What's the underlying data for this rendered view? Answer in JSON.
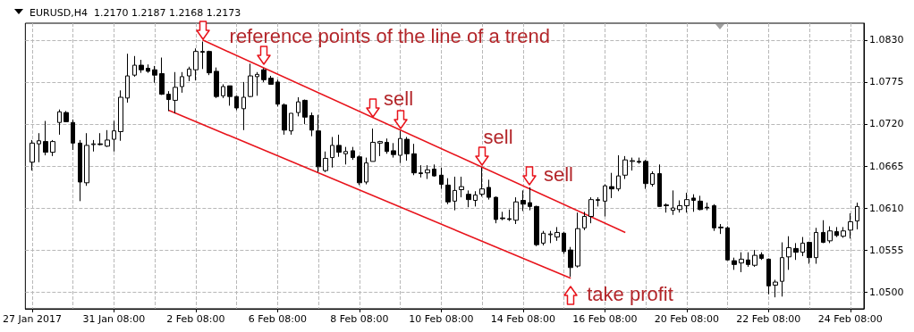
{
  "chart_data": {
    "type": "candlestick",
    "title": "EURUSD,H4  1.2170 1.2187 1.2168 1.2173",
    "categories": [
      "27 Jan 2017",
      null,
      null,
      null,
      null,
      null,
      null,
      null,
      null,
      null,
      null,
      null,
      "31 Jan 08:00",
      null,
      null,
      null,
      null,
      null,
      null,
      null,
      null,
      null,
      null,
      null,
      "2 Feb 08:00",
      null,
      null,
      null,
      null,
      null,
      null,
      null,
      null,
      null,
      null,
      null,
      "6 Feb 08:00",
      null,
      null,
      null,
      null,
      null,
      null,
      null,
      null,
      null,
      null,
      null,
      "8 Feb 08:00",
      null,
      null,
      null,
      null,
      null,
      null,
      null,
      null,
      null,
      null,
      null,
      "10 Feb 08:00",
      null,
      null,
      null,
      null,
      null,
      null,
      null,
      null,
      null,
      null,
      null,
      "14 Feb 08:00",
      null,
      null,
      null,
      null,
      null,
      null,
      null,
      null,
      null,
      null,
      null,
      "16 Feb 08:00",
      null,
      null,
      null,
      null,
      null,
      null,
      null,
      null,
      null,
      null,
      null,
      "20 Feb 08:00",
      null,
      null,
      null,
      null,
      null,
      null,
      null,
      null,
      null,
      null,
      null,
      "22 Feb 08:00",
      null,
      null,
      null,
      null,
      null,
      null,
      null,
      null,
      null,
      null,
      null,
      "24 Feb 08:00",
      null
    ],
    "ohlc": [
      [
        1.067,
        1.0699,
        1.0659,
        1.0695
      ],
      [
        1.0694,
        1.0708,
        1.067,
        1.0698
      ],
      [
        1.0697,
        1.0724,
        1.0679,
        1.0683
      ],
      [
        1.0683,
        1.0699,
        1.0678,
        1.0697
      ],
      [
        1.0722,
        1.0739,
        1.0706,
        1.0736
      ],
      [
        1.0735,
        1.0737,
        1.0723,
        1.0723
      ],
      [
        1.0722,
        1.0726,
        1.0686,
        1.0695
      ],
      [
        1.0695,
        1.0699,
        1.0619,
        1.0644
      ],
      [
        1.0643,
        1.0708,
        1.0639,
        1.0692
      ],
      [
        1.0693,
        1.0699,
        1.0684,
        1.0694
      ],
      [
        1.0694,
        1.0708,
        1.0692,
        1.0693
      ],
      [
        1.0691,
        1.0712,
        1.069,
        1.0699
      ],
      [
        1.07,
        1.0724,
        1.0684,
        1.0711
      ],
      [
        1.071,
        1.0764,
        1.0698,
        1.0755
      ],
      [
        1.0754,
        1.0812,
        1.0748,
        1.0783
      ],
      [
        1.0784,
        1.0809,
        1.0782,
        1.0797
      ],
      [
        1.0797,
        1.0804,
        1.0787,
        1.0791
      ],
      [
        1.0793,
        1.0798,
        1.0787,
        1.0789
      ],
      [
        1.0791,
        1.0796,
        1.0774,
        1.0784
      ],
      [
        1.0786,
        1.0807,
        1.0758,
        1.0759
      ],
      [
        1.0759,
        1.0763,
        1.0737,
        1.0752
      ],
      [
        1.0751,
        1.0788,
        1.0734,
        1.0768
      ],
      [
        1.0769,
        1.0788,
        1.0761,
        1.0782
      ],
      [
        1.0783,
        1.0795,
        1.0776,
        1.0792
      ],
      [
        1.0791,
        1.0819,
        1.0777,
        1.0815
      ],
      [
        1.0815,
        1.0828,
        1.0792,
        1.0814
      ],
      [
        1.0815,
        1.0816,
        1.0784,
        1.0787
      ],
      [
        1.0789,
        1.0794,
        1.0754,
        1.0756
      ],
      [
        1.0757,
        1.0772,
        1.0754,
        1.0769
      ],
      [
        1.077,
        1.077,
        1.0744,
        1.0756
      ],
      [
        1.0756,
        1.0757,
        1.0738,
        1.0741
      ],
      [
        1.074,
        1.0775,
        1.0712,
        1.0755
      ],
      [
        1.0756,
        1.0799,
        1.0755,
        1.0783
      ],
      [
        1.0782,
        1.0788,
        1.0757,
        1.0785
      ],
      [
        1.0791,
        1.0793,
        1.0775,
        1.0778
      ],
      [
        1.078,
        1.0783,
        1.0772,
        1.0772
      ],
      [
        1.0775,
        1.0778,
        1.0743,
        1.0746
      ],
      [
        1.0745,
        1.0747,
        1.0706,
        1.0712
      ],
      [
        1.0711,
        1.0734,
        1.0706,
        1.0734
      ],
      [
        1.0735,
        1.0755,
        1.073,
        1.0749
      ],
      [
        1.0751,
        1.0752,
        1.072,
        1.0729
      ],
      [
        1.0731,
        1.0735,
        1.0704,
        1.0712
      ],
      [
        1.0711,
        1.0732,
        1.0657,
        1.0664
      ],
      [
        1.0659,
        1.0684,
        1.0657,
        1.0675
      ],
      [
        1.0676,
        1.0703,
        1.0663,
        1.0692
      ],
      [
        1.0692,
        1.0706,
        1.0677,
        1.0683
      ],
      [
        1.0681,
        1.069,
        1.0667,
        1.0684
      ],
      [
        1.0685,
        1.069,
        1.0673,
        1.0676
      ],
      [
        1.0677,
        1.0679,
        1.064,
        1.0643
      ],
      [
        1.0644,
        1.0676,
        1.0641,
        1.0669
      ],
      [
        1.0671,
        1.0714,
        1.0671,
        1.0696
      ],
      [
        1.0695,
        1.0698,
        1.0678,
        1.0697
      ],
      [
        1.0696,
        1.0701,
        1.0681,
        1.0684
      ],
      [
        1.0685,
        1.0695,
        1.0676,
        1.068
      ],
      [
        1.0679,
        1.0711,
        1.0669,
        1.0701
      ],
      [
        1.07,
        1.0703,
        1.0672,
        1.0681
      ],
      [
        1.0681,
        1.0694,
        1.0653,
        1.0656
      ],
      [
        1.0656,
        1.0666,
        1.065,
        1.0655
      ],
      [
        1.0656,
        1.0666,
        1.0648,
        1.066
      ],
      [
        1.0661,
        1.0667,
        1.0651,
        1.0652
      ],
      [
        1.0653,
        1.0663,
        1.0635,
        1.0641
      ],
      [
        1.064,
        1.0649,
        1.0615,
        1.0618
      ],
      [
        1.0619,
        1.0651,
        1.0607,
        1.0633
      ],
      [
        1.0634,
        1.0651,
        1.0624,
        1.0638
      ],
      [
        1.0628,
        1.0633,
        1.0611,
        1.0621
      ],
      [
        1.062,
        1.0632,
        1.0612,
        1.0627
      ],
      [
        1.0628,
        1.0663,
        1.0625,
        1.0635
      ],
      [
        1.0637,
        1.0647,
        1.0621,
        1.0624
      ],
      [
        1.0624,
        1.0625,
        1.059,
        1.0595
      ],
      [
        1.0597,
        1.0605,
        1.0594,
        1.0596
      ],
      [
        1.0596,
        1.0608,
        1.0593,
        1.0595
      ],
      [
        1.0594,
        1.0624,
        1.0589,
        1.0618
      ],
      [
        1.062,
        1.0633,
        1.0606,
        1.0615
      ],
      [
        1.0617,
        1.0637,
        1.0607,
        1.0612
      ],
      [
        1.0612,
        1.0613,
        1.056,
        1.0562
      ],
      [
        1.0564,
        1.058,
        1.0561,
        1.0577
      ],
      [
        1.0575,
        1.058,
        1.0564,
        1.0576
      ],
      [
        1.0572,
        1.0585,
        1.0567,
        1.0578
      ],
      [
        1.0577,
        1.0579,
        1.055,
        1.0553
      ],
      [
        1.0555,
        1.0559,
        1.052,
        1.0532
      ],
      [
        1.0534,
        1.0604,
        1.0532,
        1.0583
      ],
      [
        1.0584,
        1.0605,
        1.0581,
        1.0599
      ],
      [
        1.0599,
        1.0624,
        1.059,
        1.0621
      ],
      [
        1.062,
        1.0624,
        1.0612,
        1.0621
      ],
      [
        1.0619,
        1.0641,
        1.0599,
        1.0639
      ],
      [
        1.0638,
        1.0656,
        1.0623,
        1.0635
      ],
      [
        1.0635,
        1.0679,
        1.0632,
        1.0652
      ],
      [
        1.0653,
        1.0678,
        1.0648,
        1.0673
      ],
      [
        1.0671,
        1.0676,
        1.0659,
        1.0672
      ],
      [
        1.0671,
        1.0676,
        1.0668,
        1.067
      ],
      [
        1.0671,
        1.0673,
        1.0635,
        1.0642
      ],
      [
        1.0641,
        1.0658,
        1.0638,
        1.0655
      ],
      [
        1.0655,
        1.0667,
        1.0612,
        1.0612
      ],
      [
        1.0614,
        1.0616,
        1.0604,
        1.0613
      ],
      [
        1.0607,
        1.0633,
        1.0601,
        1.061
      ],
      [
        1.0608,
        1.062,
        1.0604,
        1.0613
      ],
      [
        1.0613,
        1.063,
        1.0604,
        1.0621
      ],
      [
        1.0623,
        1.0628,
        1.0605,
        1.062
      ],
      [
        1.0619,
        1.0626,
        1.0607,
        1.0608
      ],
      [
        1.0611,
        1.0617,
        1.0607,
        1.061
      ],
      [
        1.0613,
        1.0615,
        1.058,
        1.0584
      ],
      [
        1.0585,
        1.0589,
        1.0576,
        1.0584
      ],
      [
        1.0584,
        1.0586,
        1.0541,
        1.0542
      ],
      [
        1.0541,
        1.0545,
        1.0529,
        1.0536
      ],
      [
        1.0538,
        1.0552,
        1.0526,
        1.0543
      ],
      [
        1.0542,
        1.0552,
        1.0533,
        1.0536
      ],
      [
        1.0535,
        1.0555,
        1.0533,
        1.0548
      ],
      [
        1.0549,
        1.0552,
        1.0542,
        1.0544
      ],
      [
        1.0543,
        1.0544,
        1.0497,
        1.0508
      ],
      [
        1.0509,
        1.0516,
        1.0493,
        1.0513
      ],
      [
        1.0514,
        1.0565,
        1.0494,
        1.0545
      ],
      [
        1.0546,
        1.0573,
        1.0529,
        1.0558
      ],
      [
        1.0557,
        1.0564,
        1.0542,
        1.0552
      ],
      [
        1.0552,
        1.0572,
        1.0547,
        1.0564
      ],
      [
        1.0565,
        1.0566,
        1.0537,
        1.0545
      ],
      [
        1.0545,
        1.0584,
        1.0537,
        1.0578
      ],
      [
        1.0578,
        1.0594,
        1.0564,
        1.0565
      ],
      [
        1.0567,
        1.0586,
        1.0564,
        1.058
      ],
      [
        1.0579,
        1.0585,
        1.0572,
        1.0574
      ],
      [
        1.0573,
        1.0585,
        1.0571,
        1.058
      ],
      [
        1.0581,
        1.0603,
        1.057,
        1.0592
      ],
      [
        1.0593,
        1.0617,
        1.0582,
        1.0612
      ]
    ],
    "series": [
      {
        "type": "line",
        "color": "#e8141c",
        "values": [
          null,
          null,
          null,
          null,
          null,
          null,
          null,
          null,
          null,
          null,
          null,
          null,
          null,
          null,
          null,
          null,
          null,
          null,
          null,
          null,
          null,
          null,
          null,
          null,
          null,
          1.083,
          null,
          null,
          null,
          null,
          null,
          null,
          null,
          null,
          null,
          null,
          null,
          null,
          null,
          null,
          null,
          null,
          null,
          null,
          null,
          null,
          null,
          null,
          null,
          null,
          null,
          null,
          null,
          null,
          null,
          null,
          null,
          null,
          null,
          null,
          null,
          null,
          null,
          null,
          null,
          null,
          null,
          null,
          null,
          null,
          null,
          null,
          null,
          null,
          null,
          null,
          null,
          null,
          null,
          null,
          null,
          null,
          null,
          null,
          null,
          null,
          null,
          1.0578,
          null,
          null,
          null,
          null,
          null,
          null,
          null,
          null,
          null,
          null,
          null,
          null,
          null,
          null,
          null,
          null,
          null,
          null,
          null,
          null,
          null,
          null,
          null,
          null,
          null,
          null,
          null,
          null,
          null,
          null,
          null,
          null,
          null,
          null
        ]
      },
      {
        "type": "line",
        "color": "#e8141c",
        "values": [
          null,
          null,
          null,
          null,
          null,
          null,
          null,
          null,
          null,
          null,
          null,
          null,
          null,
          null,
          null,
          null,
          null,
          null,
          null,
          null,
          1.0738,
          null,
          null,
          null,
          null,
          null,
          null,
          null,
          null,
          null,
          null,
          null,
          null,
          null,
          null,
          null,
          null,
          null,
          null,
          null,
          null,
          null,
          null,
          null,
          null,
          null,
          null,
          null,
          null,
          null,
          null,
          null,
          null,
          null,
          null,
          null,
          null,
          null,
          null,
          null,
          null,
          null,
          null,
          null,
          null,
          null,
          null,
          null,
          null,
          null,
          null,
          null,
          null,
          null,
          null,
          null,
          null,
          null,
          null,
          1.0518,
          null,
          null,
          null,
          null,
          null,
          null,
          null,
          null,
          null,
          null,
          null,
          null,
          null,
          null,
          null,
          null,
          null,
          null,
          null,
          null,
          null,
          null,
          null,
          null,
          null,
          null,
          null,
          null,
          null,
          null,
          null,
          null,
          null,
          null,
          null,
          null,
          null,
          null,
          null,
          null,
          null,
          null
        ]
      }
    ],
    "ylim": [
      1.0478,
      1.0852
    ],
    "yticks": [
      {
        "value": 1.05,
        "label": "1.0500"
      },
      {
        "value": 1.0555,
        "label": "1.0555"
      },
      {
        "value": 1.061,
        "label": "1.0610"
      },
      {
        "value": 1.0665,
        "label": "1.0665"
      },
      {
        "value": 1.072,
        "label": "1.0720"
      },
      {
        "value": 1.0775,
        "label": "1.0775"
      },
      {
        "value": 1.083,
        "label": "1.0830"
      }
    ],
    "grid": true,
    "annotations": [
      "reference points of the line of a trend",
      "sell",
      "sell",
      "sell",
      "take profit"
    ]
  }
}
